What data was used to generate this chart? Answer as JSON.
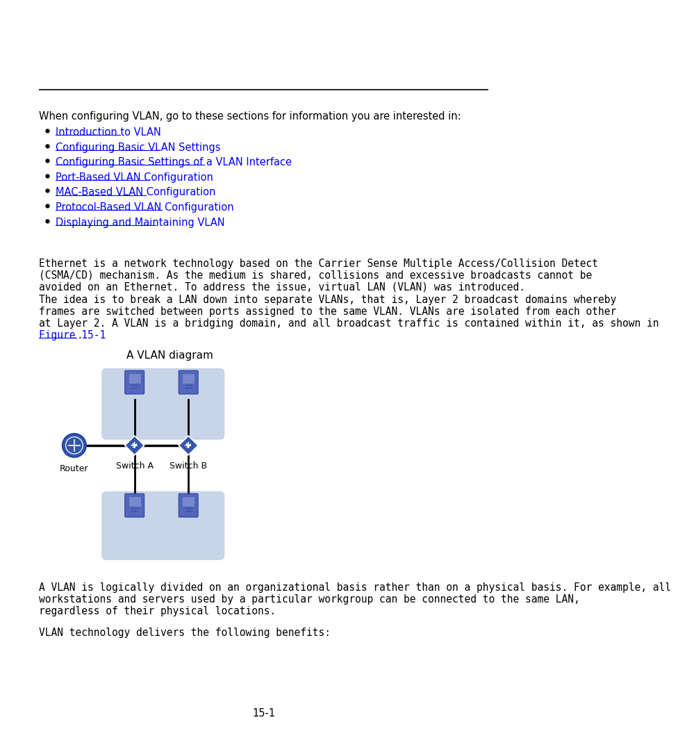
{
  "bg_color": "#ffffff",
  "text_color": "#000000",
  "link_color": "#0000FF",
  "intro_text": "When configuring VLAN, go to these sections for information you are interested in:",
  "bullet_items": [
    "Introduction to VLAN",
    "Configuring Basic VLAN Settings ",
    "Configuring Basic Settings of a VLAN Interface",
    "Port-Based VLAN Configuration",
    "MAC-Based VLAN Configuration",
    "Protocol-Based VLAN Configuration",
    "Displaying and Maintaining VLAN"
  ],
  "para1_lines": [
    "Ethernet is a network technology based on the Carrier Sense Multiple Access/Collision Detect",
    "(CSMA/CD) mechanism. As the medium is shared, collisions and excessive broadcasts cannot be",
    "avoided on an Ethernet. To address the issue, virtual LAN (VLAN) was introduced."
  ],
  "para2_lines": [
    "The idea is to break a LAN down into separate VLANs, that is, Layer 2 broadcast domains whereby",
    "frames are switched between ports assigned to the same VLAN. VLANs are isolated from each other",
    "at Layer 2. A VLAN is a bridging domain, and all broadcast traffic is contained within it, as shown in"
  ],
  "para2_link": "Figure 15-1",
  "para2_end": ".",
  "diagram_title": "A VLAN diagram",
  "label_router": "Router",
  "label_switch_a": "Switch A",
  "label_switch_b": "Switch B",
  "para3_lines": [
    "A VLAN is logically divided on an organizational basis rather than on a physical basis. For example, all",
    "workstations and servers used by a particular workgroup can be connected to the same LAN,",
    "regardless of their physical locations."
  ],
  "para4": "VLAN technology delivers the following benefits:",
  "page_number": "15-1",
  "diagram_bg": "#c8d4e8",
  "switch_color": "#3355aa",
  "router_color": "#3355aa",
  "computer_color": "#5566bb"
}
